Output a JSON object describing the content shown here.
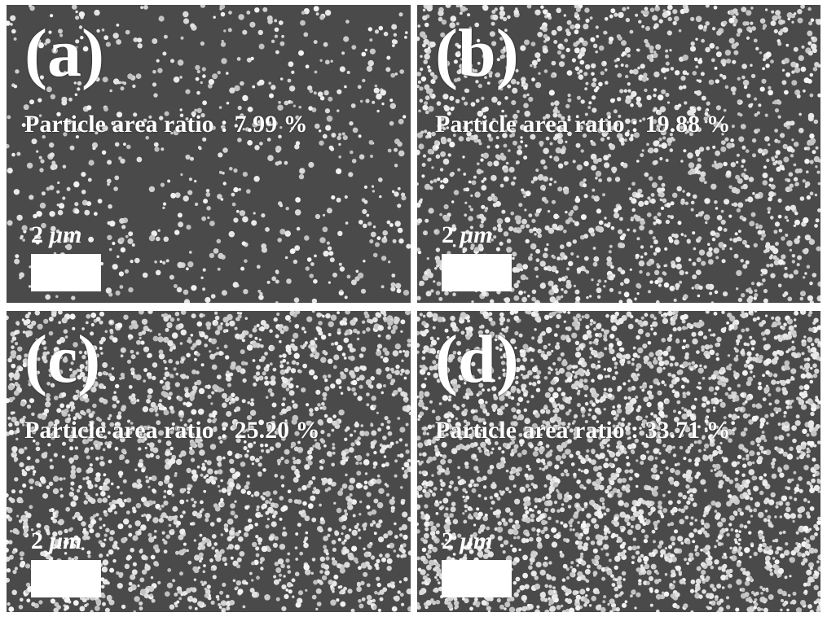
{
  "figure": {
    "panels": [
      {
        "id": "a",
        "label": "(a)",
        "ratio_text": "Particle area ratio : 7.99 %",
        "area_ratio_percent": 7.99,
        "scale_value": "2",
        "scale_unit": "μm"
      },
      {
        "id": "b",
        "label": "(b)",
        "ratio_text": "Particle area ratio : 19.88 %",
        "area_ratio_percent": 19.88,
        "scale_value": "2",
        "scale_unit": "μm"
      },
      {
        "id": "c",
        "label": "(c)",
        "ratio_text": "Particle area ratio : 25.20 %",
        "area_ratio_percent": 25.2,
        "scale_value": "2",
        "scale_unit": "μm"
      },
      {
        "id": "d",
        "label": "(d)",
        "ratio_text": "Particle area ratio : 33.71 %",
        "area_ratio_percent": 33.71,
        "scale_value": "2",
        "scale_unit": "μm"
      }
    ],
    "colors": {
      "background": "#4a4a4a",
      "particle": "#d8d8d8",
      "text": "#ffffff",
      "frame": "#ffffff"
    }
  }
}
